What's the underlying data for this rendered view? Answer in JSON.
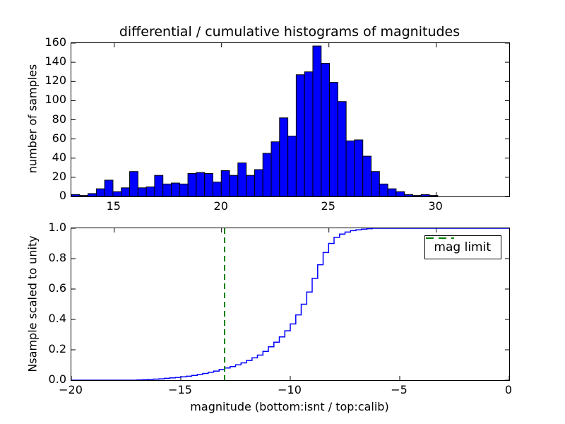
{
  "figure": {
    "title": "differential / cumulative histograms of magnitudes",
    "background": "#ffffff"
  },
  "colors": {
    "bar_fill": "#0000ff",
    "bar_edge": "#000000",
    "step_line": "#0000ff",
    "mag_limit_line": "#008000",
    "axis": "#000000",
    "text": "#000000"
  },
  "legend": {
    "label": "mag limit",
    "position": "upper right",
    "line_style": "dashed"
  },
  "chart_data": [
    {
      "type": "bar",
      "subplot": "top",
      "title": "differential / cumulative histograms of magnitudes",
      "xlabel": "",
      "ylabel": "number of samples",
      "xlim": [
        13.0,
        33.4
      ],
      "ylim": [
        0,
        160
      ],
      "xticks": [
        15,
        20,
        25,
        30
      ],
      "xtick_labels": [
        "15",
        "20",
        "25",
        "30"
      ],
      "yticks": [
        0,
        20,
        40,
        60,
        80,
        100,
        120,
        140,
        160
      ],
      "ytick_labels": [
        "0",
        "20",
        "40",
        "60",
        "80",
        "100",
        "120",
        "140",
        "160"
      ],
      "grid": false,
      "bin_start": 13.0,
      "bin_width": 0.388,
      "counts": [
        2,
        1,
        3,
        8,
        17,
        5,
        9,
        26,
        9,
        10,
        22,
        13,
        14,
        13,
        24,
        25,
        24,
        15,
        27,
        22,
        35,
        22,
        28,
        45,
        57,
        82,
        63,
        127,
        130,
        157,
        139,
        119,
        99,
        58,
        59,
        42,
        26,
        13,
        8,
        5,
        2,
        1,
        2,
        1
      ]
    },
    {
      "type": "line",
      "subplot": "bottom",
      "line_mode": "cumulative-step",
      "xlabel": "magnitude (bottom:isnt / top:calib)",
      "ylabel": "Nsample scaled to unity",
      "xlim": [
        -20,
        0
      ],
      "ylim": [
        0.0,
        1.0
      ],
      "xticks": [
        -20,
        -15,
        -10,
        -5,
        0
      ],
      "xtick_labels": [
        "−20",
        "−15",
        "−10",
        "−5",
        "0"
      ],
      "yticks": [
        0.0,
        0.2,
        0.4,
        0.6,
        0.8,
        1.0
      ],
      "ytick_labels": [
        "0.0",
        "0.2",
        "0.4",
        "0.6",
        "0.8",
        "1.0"
      ],
      "grid": false,
      "top_axis_calib_ticks": [
        15,
        20,
        25,
        30
      ],
      "top_axis_calib_xlim": [
        13.0,
        33.4
      ],
      "step_x_start": -17.0,
      "step_dx": 0.25,
      "cumulative_fraction": [
        0.002,
        0.003,
        0.005,
        0.007,
        0.009,
        0.012,
        0.015,
        0.018,
        0.022,
        0.026,
        0.031,
        0.037,
        0.044,
        0.052,
        0.06,
        0.07,
        0.08,
        0.09,
        0.101,
        0.114,
        0.13,
        0.147,
        0.165,
        0.19,
        0.22,
        0.25,
        0.285,
        0.325,
        0.37,
        0.43,
        0.5,
        0.58,
        0.67,
        0.76,
        0.84,
        0.9,
        0.94,
        0.962,
        0.975,
        0.984,
        0.99,
        0.994,
        0.997,
        1.0
      ],
      "mag_limit": -13,
      "legend_label": "mag limit"
    }
  ]
}
